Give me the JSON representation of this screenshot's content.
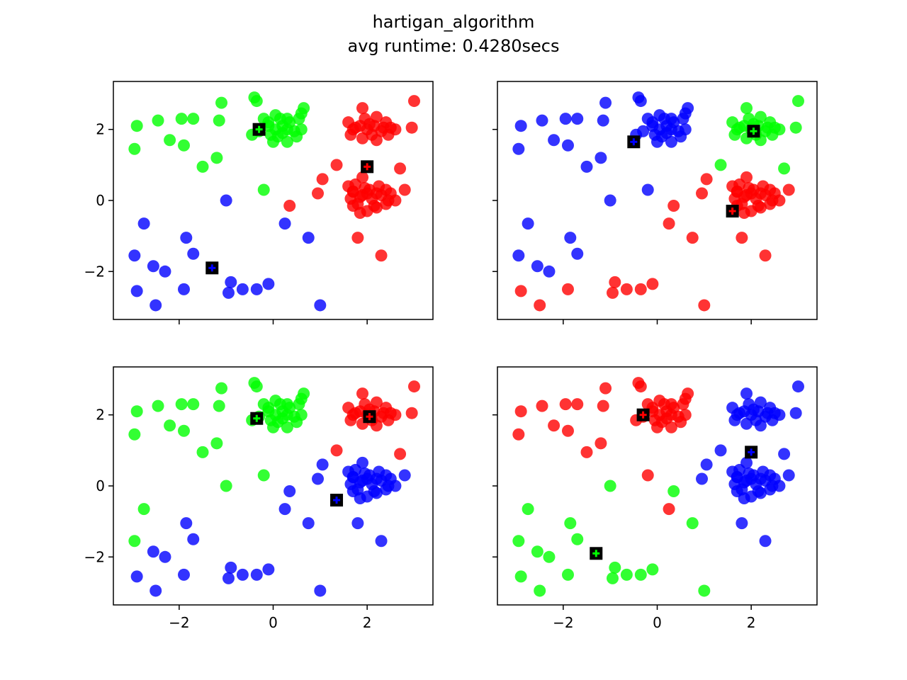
{
  "figure": {
    "title": "hartigan_algorithm",
    "subtitle": "avg runtime: 0.4280secs"
  },
  "colors": {
    "red": "#ff0000",
    "green": "#00ff00",
    "blue": "#0000ff",
    "centroid_box": "#000000"
  },
  "chart_data": {
    "type": "scatter",
    "layout": "2x2 subplots, shared axes",
    "xlim": [
      -3.4,
      3.4
    ],
    "ylim": [
      -3.35,
      3.35
    ],
    "xticks": [
      -2,
      0,
      2
    ],
    "yticks": [
      -2,
      0,
      2
    ],
    "grid": false,
    "point_alpha": 0.8,
    "datasets": {
      "clusterA": [
        [
          -0.4,
          2.9
        ],
        [
          -0.35,
          2.8
        ],
        [
          -0.2,
          2.3
        ],
        [
          0.05,
          2.4
        ],
        [
          0.3,
          2.3
        ],
        [
          0.6,
          2.45
        ],
        [
          0.65,
          2.6
        ],
        [
          0.2,
          2.1
        ],
        [
          0.05,
          2.0
        ],
        [
          -0.1,
          2.1
        ],
        [
          -0.3,
          1.95
        ],
        [
          -0.45,
          1.85
        ],
        [
          0.45,
          1.95
        ],
        [
          0.6,
          2.0
        ],
        [
          0.1,
          1.8
        ],
        [
          0.0,
          1.65
        ],
        [
          0.3,
          1.65
        ],
        [
          0.5,
          1.8
        ],
        [
          -0.1,
          2.2
        ],
        [
          0.15,
          2.3
        ],
        [
          0.3,
          2.0
        ],
        [
          0.55,
          2.3
        ],
        [
          0.2,
          1.9
        ],
        [
          -0.05,
          1.85
        ],
        [
          0.35,
          2.2
        ]
      ],
      "clusterB": [
        [
          1.6,
          2.2
        ],
        [
          1.75,
          2.05
        ],
        [
          1.9,
          2.6
        ],
        [
          1.95,
          2.3
        ],
        [
          2.05,
          2.15
        ],
        [
          2.2,
          2.35
        ],
        [
          2.4,
          2.2
        ],
        [
          2.5,
          2.05
        ],
        [
          2.3,
          1.95
        ],
        [
          2.1,
          1.85
        ],
        [
          1.9,
          1.75
        ],
        [
          1.65,
          1.85
        ],
        [
          1.7,
          2.0
        ],
        [
          2.0,
          2.0
        ],
        [
          2.2,
          1.7
        ],
        [
          2.45,
          1.85
        ],
        [
          2.6,
          2.0
        ],
        [
          1.85,
          2.1
        ],
        [
          2.15,
          2.1
        ],
        [
          2.35,
          2.05
        ]
      ],
      "clusterC": [
        [
          1.6,
          0.4
        ],
        [
          1.7,
          0.25
        ],
        [
          1.75,
          0.45
        ],
        [
          1.9,
          0.65
        ],
        [
          1.95,
          0.35
        ],
        [
          2.05,
          0.3
        ],
        [
          2.25,
          0.4
        ],
        [
          2.4,
          0.3
        ],
        [
          2.5,
          0.2
        ],
        [
          2.6,
          0.0
        ],
        [
          2.4,
          -0.1
        ],
        [
          2.2,
          -0.2
        ],
        [
          2.0,
          -0.3
        ],
        [
          1.85,
          -0.35
        ],
        [
          1.7,
          -0.15
        ],
        [
          1.65,
          0.05
        ],
        [
          1.85,
          0.1
        ],
        [
          2.1,
          0.05
        ],
        [
          2.3,
          0.15
        ],
        [
          2.0,
          0.2
        ],
        [
          1.8,
          -0.1
        ],
        [
          2.15,
          -0.15
        ],
        [
          2.45,
          0.0
        ],
        [
          1.9,
          0.15
        ],
        [
          2.2,
          0.2
        ],
        [
          1.7,
          0.25
        ]
      ],
      "scatter": [
        [
          -2.95,
          1.45
        ],
        [
          -2.9,
          2.1
        ],
        [
          -2.45,
          2.25
        ],
        [
          -2.2,
          1.7
        ],
        [
          -1.95,
          2.3
        ],
        [
          -1.9,
          1.55
        ],
        [
          -1.7,
          2.3
        ],
        [
          -1.5,
          0.95
        ],
        [
          -1.2,
          1.2
        ],
        [
          -1.15,
          2.25
        ],
        [
          -1.1,
          2.75
        ],
        [
          -0.2,
          0.3
        ],
        [
          0.25,
          -0.65
        ],
        [
          0.35,
          -0.15
        ],
        [
          0.75,
          -1.05
        ],
        [
          0.95,
          0.2
        ],
        [
          1.05,
          0.6
        ],
        [
          1.35,
          1.0
        ],
        [
          1.8,
          -1.05
        ],
        [
          2.3,
          -1.55
        ],
        [
          2.7,
          0.9
        ],
        [
          2.8,
          0.3
        ],
        [
          2.95,
          2.05
        ],
        [
          3.0,
          2.8
        ],
        [
          -2.95,
          -1.55
        ],
        [
          -2.9,
          -2.55
        ],
        [
          -2.75,
          -0.65
        ],
        [
          -2.55,
          -1.85
        ],
        [
          -2.5,
          -2.95
        ],
        [
          -2.3,
          -2.0
        ],
        [
          -1.9,
          -2.5
        ],
        [
          -1.85,
          -1.05
        ],
        [
          -1.7,
          -1.5
        ],
        [
          -1.0,
          0.0
        ],
        [
          -0.95,
          -2.6
        ],
        [
          -0.9,
          -2.3
        ],
        [
          -0.65,
          -2.5
        ],
        [
          -0.35,
          -2.5
        ],
        [
          -0.1,
          -2.35
        ],
        [
          1.0,
          -2.95
        ]
      ],
      "assignments": [
        {
          "A": "green",
          "B": "red",
          "C": "red",
          "scatter": [
            "green",
            "green",
            "green",
            "green",
            "green",
            "green",
            "green",
            "green",
            "green",
            "green",
            "green",
            "green",
            "blue",
            "red",
            "blue",
            "red",
            "red",
            "red",
            "red",
            "red",
            "red",
            "red",
            "red",
            "red",
            "blue",
            "blue",
            "blue",
            "blue",
            "blue",
            "blue",
            "blue",
            "blue",
            "blue",
            "blue",
            "blue",
            "blue",
            "blue",
            "blue",
            "blue",
            "blue"
          ]
        },
        {
          "A": "blue",
          "B": "green",
          "C": "red",
          "scatter": [
            "blue",
            "blue",
            "blue",
            "blue",
            "blue",
            "blue",
            "blue",
            "blue",
            "blue",
            "blue",
            "blue",
            "blue",
            "red",
            "red",
            "red",
            "red",
            "red",
            "green",
            "red",
            "red",
            "green",
            "red",
            "green",
            "green",
            "blue",
            "red",
            "blue",
            "blue",
            "red",
            "blue",
            "red",
            "blue",
            "blue",
            "blue",
            "red",
            "red",
            "red",
            "red",
            "red",
            "red"
          ]
        },
        {
          "A": "green",
          "B": "red",
          "C": "blue",
          "scatter": [
            "green",
            "green",
            "green",
            "green",
            "green",
            "green",
            "green",
            "green",
            "green",
            "green",
            "green",
            "green",
            "blue",
            "blue",
            "blue",
            "blue",
            "blue",
            "red",
            "blue",
            "blue",
            "red",
            "blue",
            "red",
            "red",
            "green",
            "blue",
            "green",
            "blue",
            "blue",
            "blue",
            "blue",
            "blue",
            "blue",
            "green",
            "blue",
            "blue",
            "blue",
            "blue",
            "blue",
            "blue"
          ]
        },
        {
          "A": "red",
          "B": "blue",
          "C": "blue",
          "scatter": [
            "red",
            "red",
            "red",
            "red",
            "red",
            "red",
            "red",
            "red",
            "red",
            "red",
            "red",
            "red",
            "red",
            "green",
            "green",
            "blue",
            "blue",
            "blue",
            "blue",
            "blue",
            "blue",
            "blue",
            "blue",
            "blue",
            "green",
            "green",
            "green",
            "green",
            "green",
            "green",
            "green",
            "green",
            "green",
            "green",
            "green",
            "green",
            "green",
            "green",
            "green",
            "green"
          ]
        }
      ]
    },
    "subplots": [
      {
        "position": "top-left",
        "centroids": [
          {
            "x": -0.3,
            "y": 2.0,
            "color": "green"
          },
          {
            "x": 2.0,
            "y": 0.95,
            "color": "red"
          },
          {
            "x": -1.3,
            "y": -1.9,
            "color": "blue"
          }
        ]
      },
      {
        "position": "top-right",
        "centroids": [
          {
            "x": -0.5,
            "y": 1.65,
            "color": "blue"
          },
          {
            "x": 2.05,
            "y": 1.95,
            "color": "green"
          },
          {
            "x": 1.6,
            "y": -0.3,
            "color": "red"
          }
        ]
      },
      {
        "position": "bottom-left",
        "centroids": [
          {
            "x": -0.35,
            "y": 1.9,
            "color": "green"
          },
          {
            "x": 2.05,
            "y": 1.95,
            "color": "red"
          },
          {
            "x": 1.35,
            "y": -0.4,
            "color": "blue"
          }
        ]
      },
      {
        "position": "bottom-right",
        "centroids": [
          {
            "x": -0.3,
            "y": 2.0,
            "color": "red"
          },
          {
            "x": 2.0,
            "y": 0.95,
            "color": "blue"
          },
          {
            "x": -1.3,
            "y": -1.9,
            "color": "green"
          }
        ]
      }
    ]
  }
}
